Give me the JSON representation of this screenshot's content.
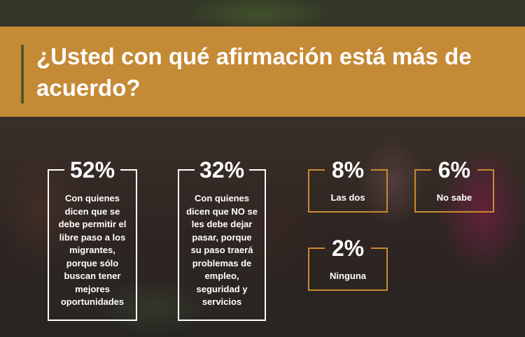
{
  "title": "¿Usted con qué afirmación está más de acuerdo?",
  "colors": {
    "band": "#c58a36",
    "accent": "#4b5a2a",
    "outline_white": "#ffffff",
    "outline_orange": "#c98a2e"
  },
  "cards": [
    {
      "value": "52%",
      "text": "Con quienes dicen que se debe permitir el libre paso a los migrantes, porque sólo buscan tener mejores oportunidades"
    },
    {
      "value": "32%",
      "text": "Con quienes dicen que NO se les debe dejar pasar, porque su paso traerá problemas de empleo, seguridad y servicios"
    },
    {
      "value": "8%",
      "text": "Las dos"
    },
    {
      "value": "6%",
      "text": "No sabe"
    },
    {
      "value": "2%",
      "text": "Ninguna"
    }
  ],
  "chart_data": {
    "type": "table",
    "title": "¿Usted con qué afirmación está más de acuerdo?",
    "categories": [
      "Con quienes dicen que se debe permitir el libre paso a los migrantes, porque sólo buscan tener mejores oportunidades",
      "Con quienes dicen que NO se les debe dejar pasar, porque su paso traerá problemas de empleo, seguridad y servicios",
      "Las dos",
      "No sabe",
      "Ninguna"
    ],
    "values": [
      52,
      32,
      8,
      6,
      2
    ]
  }
}
